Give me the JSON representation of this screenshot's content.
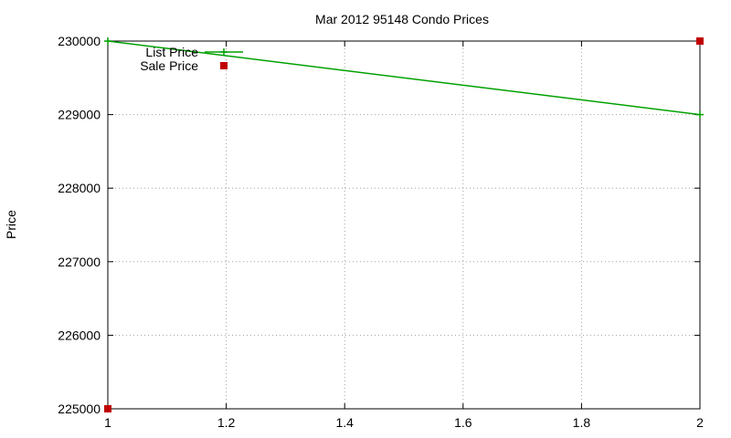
{
  "chart_data": {
    "type": "line",
    "title": "Mar 2012 95148 Condo Prices",
    "xlabel": "",
    "ylabel": "Price",
    "xlim": [
      1,
      2
    ],
    "ylim": [
      225000,
      230000
    ],
    "x_ticks": [
      1,
      1.2,
      1.4,
      1.6,
      1.8,
      2
    ],
    "x_tick_labels": [
      "1",
      "1.2",
      "1.4",
      "1.6",
      "1.8",
      "2"
    ],
    "y_ticks": [
      225000,
      226000,
      227000,
      228000,
      229000,
      230000
    ],
    "y_tick_labels": [
      "225000",
      "226000",
      "227000",
      "228000",
      "229000",
      "230000"
    ],
    "grid": true,
    "legend_position": "top-left",
    "series": [
      {
        "name": "List Price",
        "style": "line+cross",
        "color": "#00a000",
        "points": [
          [
            1,
            230000
          ],
          [
            2,
            229000
          ]
        ]
      },
      {
        "name": "Sale Price",
        "style": "square",
        "color": "#c00000",
        "points": [
          [
            1,
            225000
          ],
          [
            2,
            230000
          ]
        ]
      }
    ]
  }
}
